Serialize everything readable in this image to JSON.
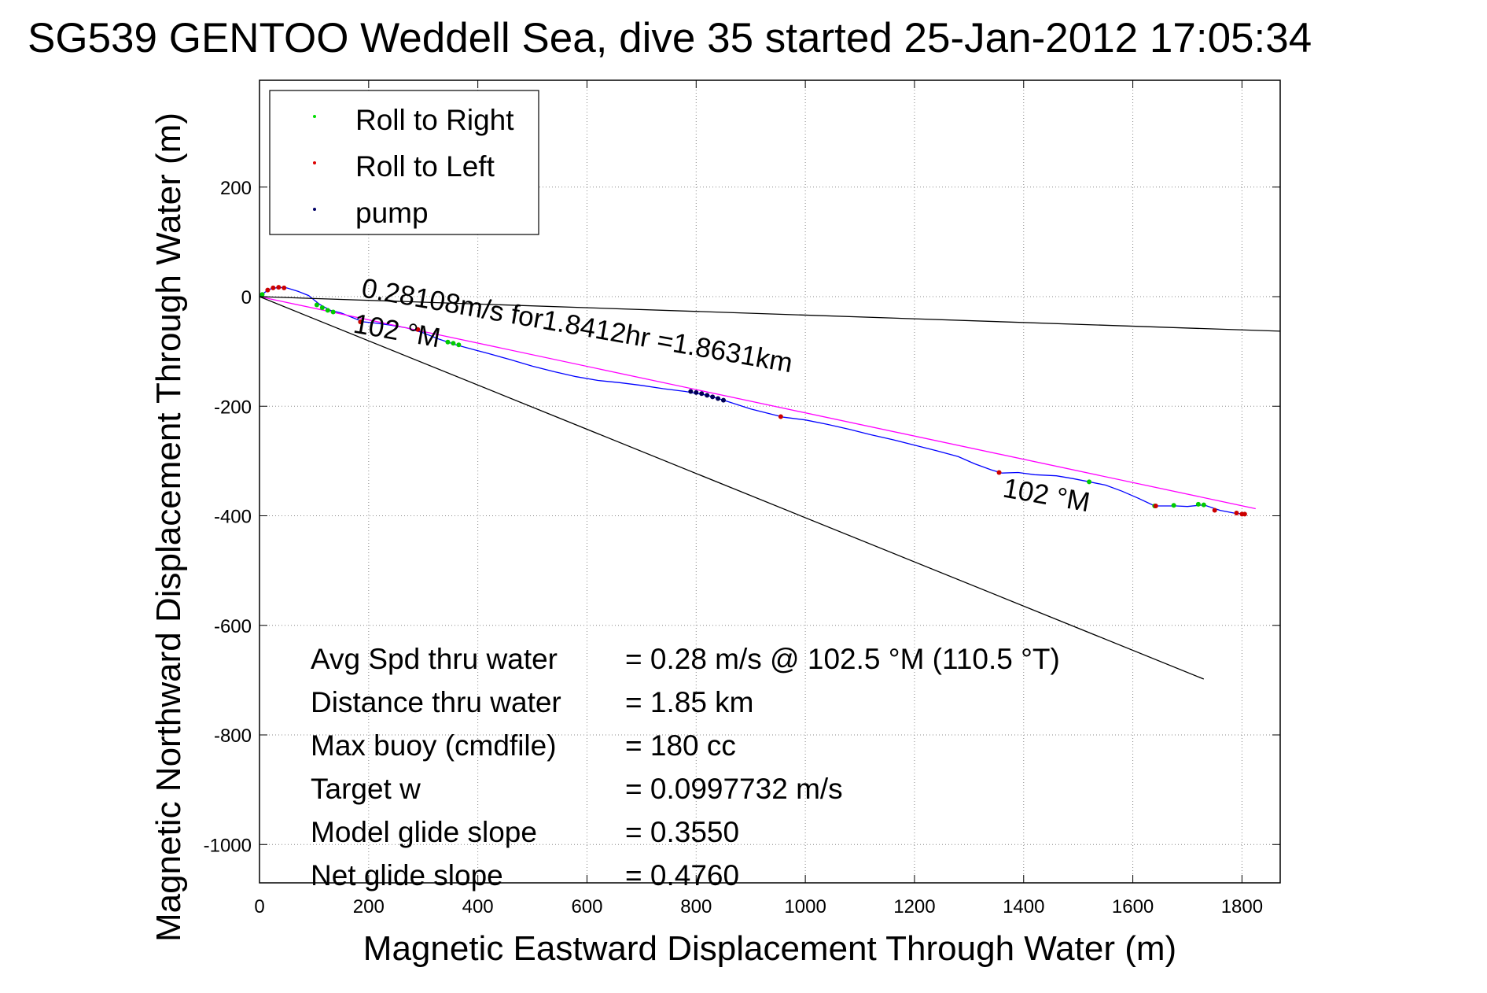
{
  "chart_data": {
    "type": "line",
    "title": "SG539 GENTOO Weddell Sea, dive 35 started 25-Jan-2012 17:05:34",
    "xlabel": "Magnetic Eastward Displacement Through Water (m)",
    "ylabel": "Magnetic Northward Displacement Through Water (m)",
    "xlim": [
      0,
      1870
    ],
    "ylim": [
      -1070,
      395
    ],
    "xticks": [
      0,
      200,
      400,
      600,
      800,
      1000,
      1200,
      1400,
      1600,
      1800
    ],
    "yticks": [
      -1000,
      -800,
      -600,
      -400,
      -200,
      0,
      200
    ],
    "grid": true,
    "legend_position": "top-left",
    "legend": [
      {
        "label": "Roll to Right",
        "color": "#00dd00"
      },
      {
        "label": "Roll to Left",
        "color": "#dd0000"
      },
      {
        "label": "pump",
        "color": "#000066"
      }
    ],
    "series": [
      {
        "kind": "track",
        "color": "#0000ff",
        "points": [
          [
            0,
            0
          ],
          [
            10,
            8
          ],
          [
            20,
            14
          ],
          [
            35,
            17
          ],
          [
            50,
            16
          ],
          [
            70,
            10
          ],
          [
            90,
            2
          ],
          [
            110,
            -14
          ],
          [
            130,
            -25
          ],
          [
            150,
            -30
          ],
          [
            170,
            -38
          ],
          [
            190,
            -46
          ],
          [
            210,
            -48
          ],
          [
            240,
            -52
          ],
          [
            270,
            -57
          ],
          [
            300,
            -66
          ],
          [
            330,
            -78
          ],
          [
            360,
            -88
          ],
          [
            390,
            -96
          ],
          [
            420,
            -104
          ],
          [
            460,
            -115
          ],
          [
            500,
            -127
          ],
          [
            540,
            -137
          ],
          [
            580,
            -146
          ],
          [
            620,
            -153
          ],
          [
            660,
            -157
          ],
          [
            700,
            -162
          ],
          [
            740,
            -168
          ],
          [
            780,
            -173
          ],
          [
            820,
            -180
          ],
          [
            860,
            -192
          ],
          [
            900,
            -205
          ],
          [
            940,
            -215
          ],
          [
            960,
            -220
          ],
          [
            1000,
            -225
          ],
          [
            1040,
            -233
          ],
          [
            1080,
            -242
          ],
          [
            1120,
            -252
          ],
          [
            1160,
            -261
          ],
          [
            1200,
            -271
          ],
          [
            1240,
            -281
          ],
          [
            1280,
            -292
          ],
          [
            1310,
            -305
          ],
          [
            1340,
            -316
          ],
          [
            1360,
            -322
          ],
          [
            1390,
            -321
          ],
          [
            1420,
            -325
          ],
          [
            1460,
            -327
          ],
          [
            1490,
            -332
          ],
          [
            1520,
            -338
          ],
          [
            1550,
            -344
          ],
          [
            1580,
            -355
          ],
          [
            1610,
            -368
          ],
          [
            1640,
            -382
          ],
          [
            1680,
            -382
          ],
          [
            1700,
            -383
          ],
          [
            1730,
            -380
          ],
          [
            1760,
            -390
          ],
          [
            1785,
            -395
          ],
          [
            1805,
            -397
          ]
        ]
      },
      {
        "kind": "fit-line",
        "color": "#ff00ff",
        "points": [
          [
            0,
            0
          ],
          [
            1825,
            -387
          ]
        ]
      },
      {
        "kind": "heading-line-1",
        "color": "#000000",
        "points": [
          [
            0,
            0
          ],
          [
            1870,
            -63
          ]
        ]
      },
      {
        "kind": "heading-line-2",
        "color": "#000000",
        "points": [
          [
            0,
            0
          ],
          [
            1730,
            -698
          ]
        ]
      }
    ],
    "markers": {
      "roll_right": [
        [
          5,
          4
        ],
        [
          105,
          -15
        ],
        [
          115,
          -20
        ],
        [
          125,
          -25
        ],
        [
          135,
          -28
        ],
        [
          185,
          -46
        ],
        [
          345,
          -83
        ],
        [
          355,
          -85
        ],
        [
          365,
          -88
        ],
        [
          1520,
          -338
        ],
        [
          1640,
          -382
        ],
        [
          1675,
          -381
        ],
        [
          1720,
          -379
        ],
        [
          1730,
          -380
        ]
      ],
      "roll_left": [
        [
          15,
          12
        ],
        [
          25,
          16
        ],
        [
          35,
          17
        ],
        [
          45,
          16
        ],
        [
          185,
          -46
        ],
        [
          290,
          -60
        ],
        [
          955,
          -219
        ],
        [
          1355,
          -321
        ],
        [
          1642,
          -382
        ],
        [
          1750,
          -390
        ],
        [
          1790,
          -395
        ],
        [
          1800,
          -397
        ],
        [
          1805,
          -397
        ]
      ],
      "pump": [
        [
          790,
          -173
        ],
        [
          800,
          -175
        ],
        [
          810,
          -177
        ],
        [
          820,
          -180
        ],
        [
          830,
          -183
        ],
        [
          840,
          -186
        ],
        [
          850,
          -189
        ]
      ]
    },
    "annotations": [
      {
        "text": "0.28108m/s for1.8412hr =1.8631km",
        "x": 185,
        "y": 0,
        "rotation": 10
      },
      {
        "text": "102 °M",
        "x": 170,
        "y": -65,
        "rotation": 10
      },
      {
        "text": "102 °M",
        "x": 1360,
        "y": -365,
        "rotation": 10
      }
    ],
    "stats": [
      {
        "label": "Avg Spd thru water",
        "value": "=  0.28 m/s @ 102.5 °M (110.5 °T)"
      },
      {
        "label": "Distance thru water",
        "value": "=  1.85 km"
      },
      {
        "label": "Max buoy (cmdfile)",
        "value": "= 180 cc"
      },
      {
        "label": "Target w",
        "value": "= 0.0997732 m/s"
      },
      {
        "label": "Model glide slope",
        "value": "= 0.3550"
      },
      {
        "label": "Net glide slope",
        "value": "= 0.4760"
      }
    ]
  }
}
